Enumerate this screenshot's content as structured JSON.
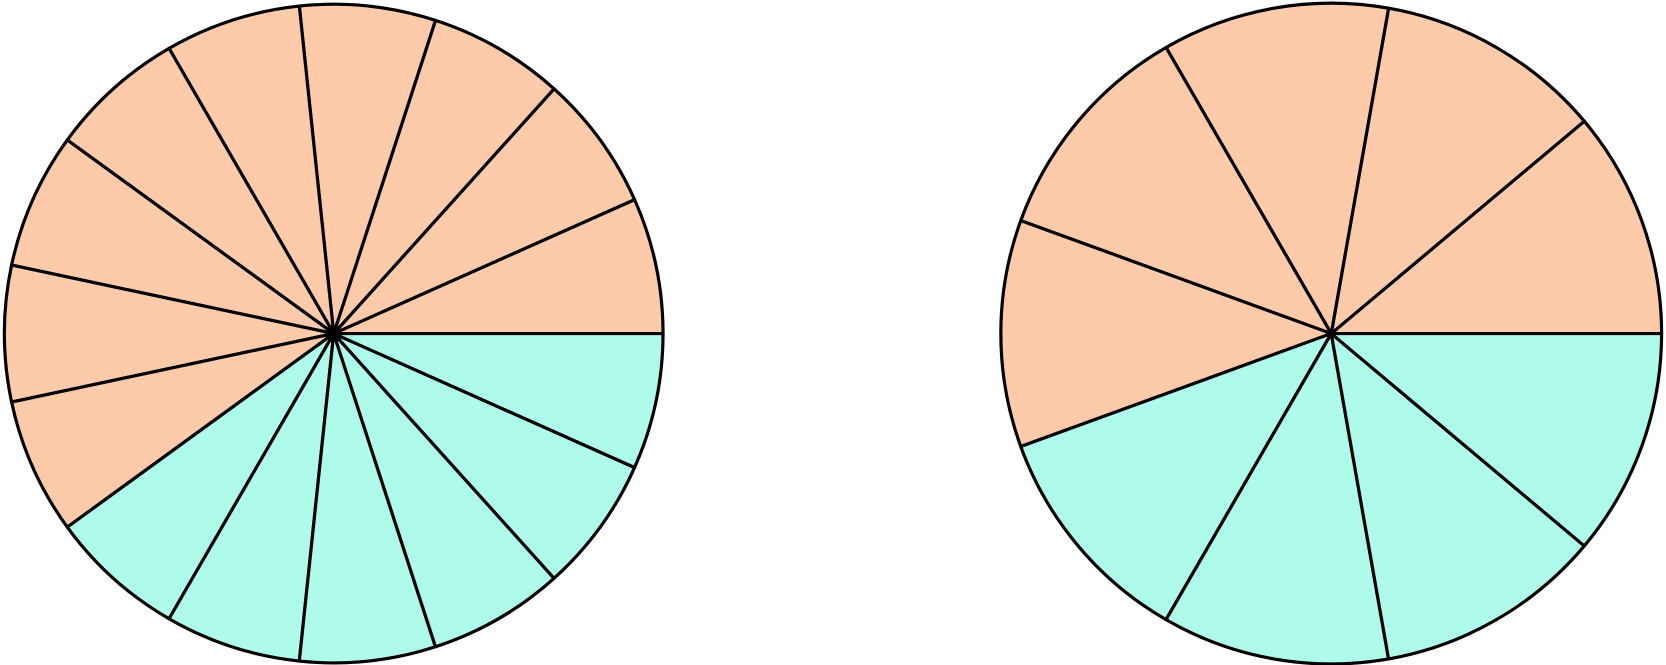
{
  "circles": [
    {
      "slices": 15,
      "shaded": 9
    },
    {
      "slices": 9,
      "shaded": 5
    }
  ],
  "shaded_color": "#fdcbaa",
  "unshaded_color": "#aefbec"
}
